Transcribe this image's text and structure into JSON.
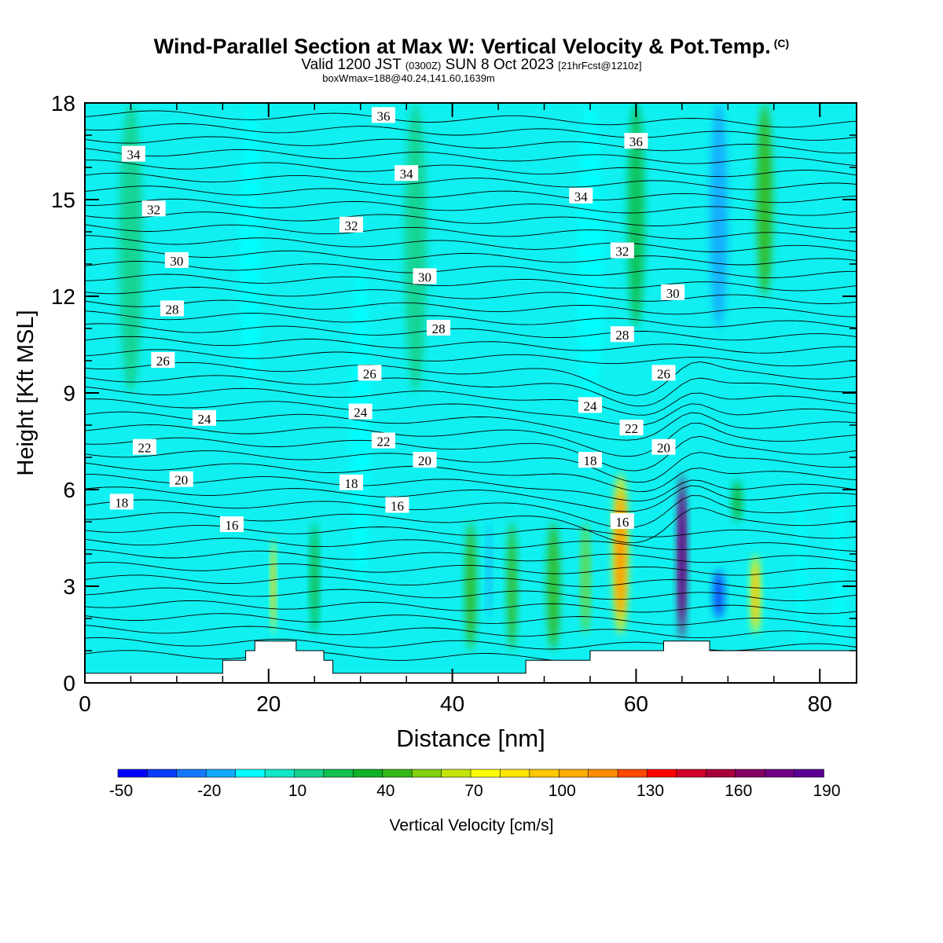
{
  "chart_data": {
    "type": "heatmap",
    "title": "Wind-Parallel Section at Max W: Vertical Velocity & Pot.Temp.",
    "title_mark": "(C)",
    "subtitle_main": "Valid 1200 JST",
    "subtitle_utc": "(0300Z)",
    "subtitle_date": "SUN 8 Oct 2023",
    "subtitle_fcst": "[21hrFcst@1210z]",
    "info": "boxWmax=188@40.24,141.60,1639m",
    "xlabel": "Distance [nm]",
    "ylabel": "Height [Kft MSL]",
    "xlim": [
      0,
      84
    ],
    "ylim": [
      0,
      18
    ],
    "x_ticks": [
      "0",
      "20",
      "40",
      "60",
      "80"
    ],
    "y_ticks": [
      "0",
      "3",
      "6",
      "9",
      "12",
      "15",
      "18"
    ],
    "colorbar": {
      "label": "Vertical Velocity [cm/s]",
      "tick_labels": [
        "-50",
        "-20",
        "10",
        "40",
        "70",
        "100",
        "130",
        "160",
        "190"
      ],
      "colors": [
        "#0000ff",
        "#0a3cff",
        "#1478ff",
        "#12a8ff",
        "#00ffff",
        "#10e6c8",
        "#14d28c",
        "#10c050",
        "#10b228",
        "#34b818",
        "#80d010",
        "#c4e40a",
        "#ffff00",
        "#ffe400",
        "#ffc800",
        "#ffac00",
        "#ff8c00",
        "#ff4800",
        "#ff0000",
        "#d20028",
        "#a8003c",
        "#860064",
        "#6e0082",
        "#5a0096"
      ]
    },
    "columns": [
      {
        "x": 5,
        "top": 18,
        "bottom": 9,
        "w": 30,
        "level": "10"
      },
      {
        "x": 18,
        "top": 18,
        "bottom": 9,
        "w": 26,
        "level": "-10"
      },
      {
        "x": 20.5,
        "top": 4.5,
        "bottom": 1.5,
        "w": 6,
        "level": "70"
      },
      {
        "x": 25,
        "top": 5,
        "bottom": 1.5,
        "w": 10,
        "level": "30"
      },
      {
        "x": 30,
        "top": 13,
        "bottom": 3,
        "w": 24,
        "level": "-10"
      },
      {
        "x": 36,
        "top": 18,
        "bottom": 9,
        "w": 28,
        "level": "10"
      },
      {
        "x": 42,
        "top": 5,
        "bottom": 1,
        "w": 14,
        "level": "40"
      },
      {
        "x": 44,
        "top": 5,
        "bottom": 2,
        "w": 6,
        "level": "-20"
      },
      {
        "x": 46.5,
        "top": 5,
        "bottom": 1,
        "w": 12,
        "level": "40"
      },
      {
        "x": 51,
        "top": 5,
        "bottom": 1,
        "w": 16,
        "level": "40"
      },
      {
        "x": 54.5,
        "top": 5,
        "bottom": 1.5,
        "w": 10,
        "level": "50"
      },
      {
        "x": 55,
        "top": 18,
        "bottom": 8,
        "w": 32,
        "level": "-10"
      },
      {
        "x": 58.3,
        "top": 6.5,
        "bottom": 1.5,
        "w": 20,
        "level": "80"
      },
      {
        "x": 60,
        "top": 18,
        "bottom": 11,
        "w": 22,
        "level": "20"
      },
      {
        "x": 65,
        "top": 6.5,
        "bottom": 1.3,
        "w": 12,
        "level": "160"
      },
      {
        "x": 69,
        "top": 3.5,
        "bottom": 2,
        "w": 14,
        "level": "-40"
      },
      {
        "x": 69,
        "top": 18,
        "bottom": 11,
        "w": 22,
        "level": "-20"
      },
      {
        "x": 71,
        "top": 6.3,
        "bottom": 5,
        "w": 12,
        "level": "30"
      },
      {
        "x": 73,
        "top": 4,
        "bottom": 1.5,
        "w": 12,
        "level": "70"
      },
      {
        "x": 74,
        "top": 18,
        "bottom": 12,
        "w": 20,
        "level": "40"
      },
      {
        "x": 78,
        "top": 6,
        "bottom": 1,
        "w": 10,
        "level": "-10"
      },
      {
        "x": 82,
        "top": 6,
        "bottom": 1,
        "w": 14,
        "level": "-10"
      }
    ],
    "isentropes": [
      {
        "label": "16",
        "label_x": 16,
        "label_y": 4.9
      },
      {
        "label": "18",
        "label_x": 4,
        "label_y": 5.6
      },
      {
        "label": "18",
        "label_x": 29,
        "label_y": 6.2
      },
      {
        "label": "18",
        "label_x": 55,
        "label_y": 6.9
      },
      {
        "label": "16",
        "label_x": 34,
        "label_y": 5.5
      },
      {
        "label": "16",
        "label_x": 58.5,
        "label_y": 5.0
      },
      {
        "label": "20",
        "label_x": 10.5,
        "label_y": 6.3
      },
      {
        "label": "20",
        "label_x": 37,
        "label_y": 6.9
      },
      {
        "label": "20",
        "label_x": 63,
        "label_y": 7.3
      },
      {
        "label": "22",
        "label_x": 6.5,
        "label_y": 7.3
      },
      {
        "label": "22",
        "label_x": 32.5,
        "label_y": 7.5
      },
      {
        "label": "22",
        "label_x": 59.5,
        "label_y": 7.9
      },
      {
        "label": "24",
        "label_x": 13,
        "label_y": 8.2
      },
      {
        "label": "24",
        "label_x": 30,
        "label_y": 8.4
      },
      {
        "label": "24",
        "label_x": 55,
        "label_y": 8.6
      },
      {
        "label": "26",
        "label_x": 8.5,
        "label_y": 10.0
      },
      {
        "label": "26",
        "label_x": 31,
        "label_y": 9.6
      },
      {
        "label": "26",
        "label_x": 63,
        "label_y": 9.6
      },
      {
        "label": "28",
        "label_x": 9.5,
        "label_y": 11.6
      },
      {
        "label": "28",
        "label_x": 38.5,
        "label_y": 11.0
      },
      {
        "label": "28",
        "label_x": 58.5,
        "label_y": 10.8
      },
      {
        "label": "30",
        "label_x": 10,
        "label_y": 13.1
      },
      {
        "label": "30",
        "label_x": 37,
        "label_y": 12.6
      },
      {
        "label": "30",
        "label_x": 64,
        "label_y": 12.1
      },
      {
        "label": "32",
        "label_x": 7.5,
        "label_y": 14.7
      },
      {
        "label": "32",
        "label_x": 29,
        "label_y": 14.2
      },
      {
        "label": "32",
        "label_x": 58.5,
        "label_y": 13.4
      },
      {
        "label": "34",
        "label_x": 5.3,
        "label_y": 16.4
      },
      {
        "label": "34",
        "label_x": 35,
        "label_y": 15.8
      },
      {
        "label": "34",
        "label_x": 54,
        "label_y": 15.1
      },
      {
        "label": "36",
        "label_x": 32.5,
        "label_y": 17.6
      },
      {
        "label": "36",
        "label_x": 60,
        "label_y": 16.8
      }
    ],
    "terrain": [
      [
        0,
        0.3
      ],
      [
        15,
        0.3
      ],
      [
        15,
        0.7
      ],
      [
        17.5,
        0.7
      ],
      [
        17.5,
        1.0
      ],
      [
        18.5,
        1.0
      ],
      [
        18.5,
        1.3
      ],
      [
        23,
        1.3
      ],
      [
        23,
        1.0
      ],
      [
        26,
        1.0
      ],
      [
        26,
        0.7
      ],
      [
        27,
        0.7
      ],
      [
        27,
        0.3
      ],
      [
        48,
        0.3
      ],
      [
        48,
        0.7
      ],
      [
        55,
        0.7
      ],
      [
        55,
        1.0
      ],
      [
        63,
        1.0
      ],
      [
        63,
        1.3
      ],
      [
        68,
        1.3
      ],
      [
        68,
        1.0
      ],
      [
        84,
        1.0
      ]
    ]
  }
}
